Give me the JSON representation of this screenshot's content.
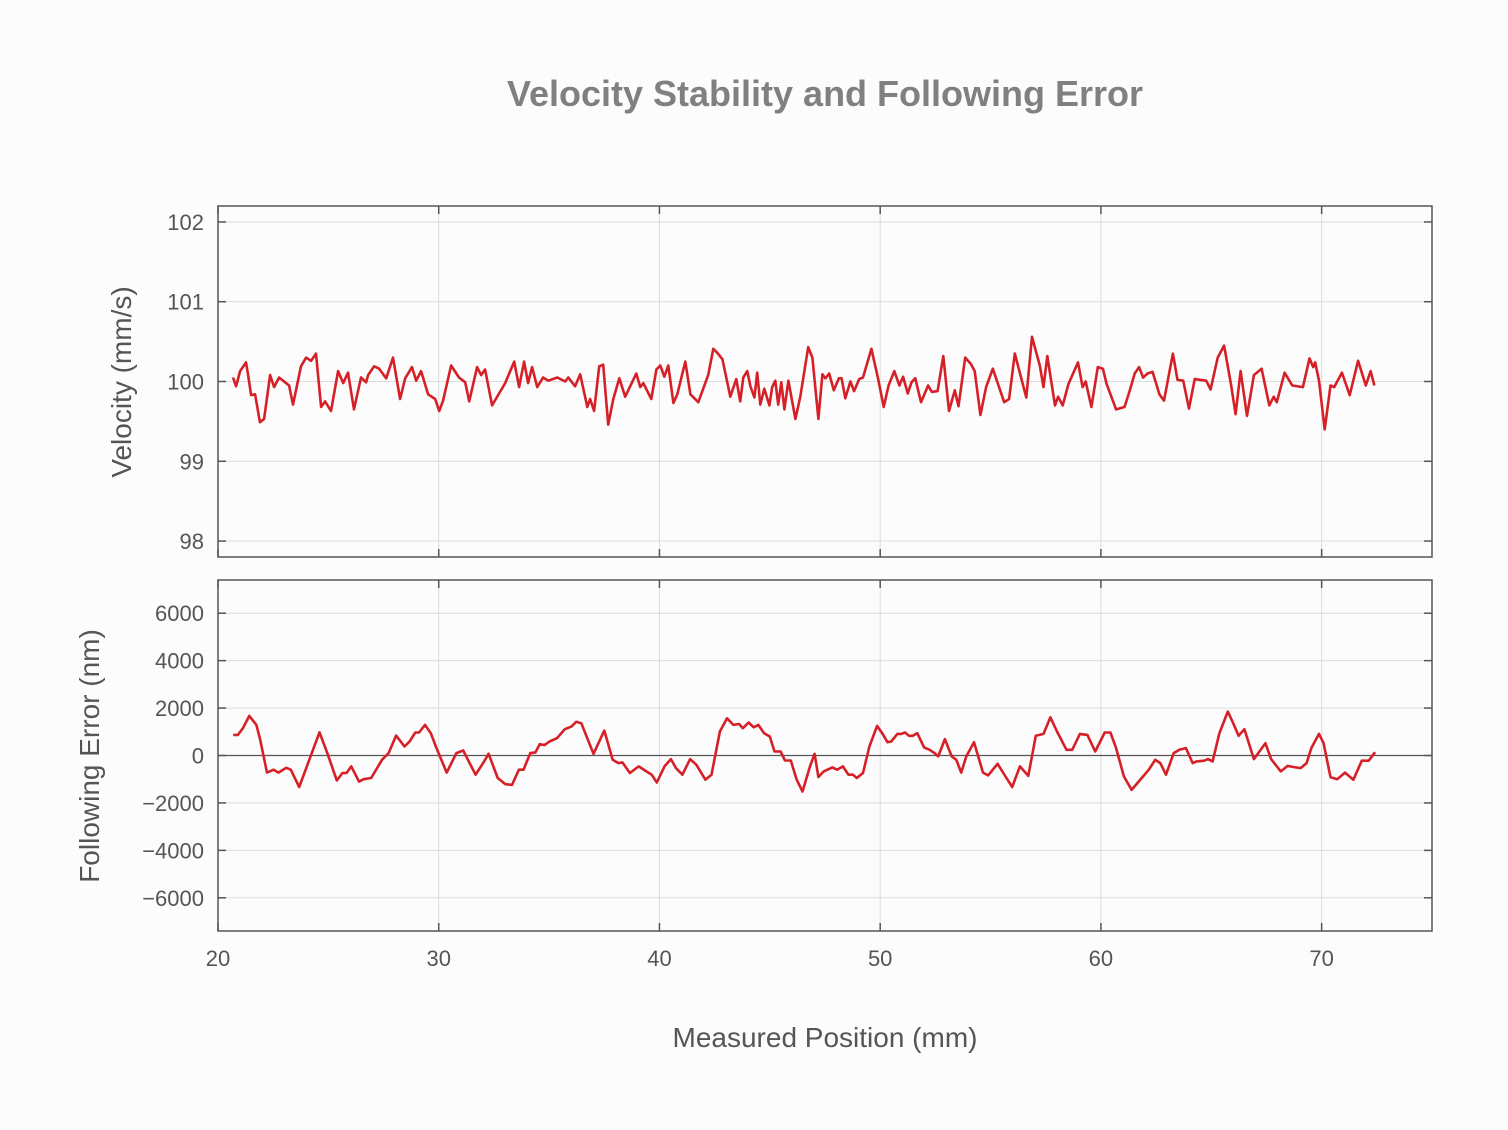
{
  "chart_data": {
    "title": "Velocity Stability and Following Error",
    "xlabel": "Measured Position (mm)",
    "xlim": [
      20,
      75
    ],
    "xticks": [
      20,
      30,
      40,
      50,
      60,
      70
    ],
    "grid": true,
    "line_color": "#d62028",
    "panels": [
      {
        "type": "line",
        "ylabel": "Velocity (mm/s)",
        "ylim": [
          97.8,
          102.2
        ],
        "yticks": [
          98,
          99,
          100,
          101,
          102
        ],
        "ytick_labels": [
          "98",
          "99",
          "100",
          "101",
          "102"
        ],
        "x": [
          20.68,
          20.82,
          21.0,
          21.27,
          21.36,
          21.5,
          21.68,
          21.9,
          22.09,
          22.36,
          22.54,
          22.77,
          23.04,
          23.22,
          23.4,
          23.76,
          23.99,
          24.22,
          24.44,
          24.67,
          24.85,
          25.12,
          25.44,
          25.67,
          25.89,
          26.16,
          26.48,
          26.71,
          26.8,
          27.07,
          27.3,
          27.62,
          27.93,
          28.25,
          28.48,
          28.79,
          28.98,
          29.2,
          29.52,
          29.84,
          30.02,
          30.2,
          30.56,
          30.92,
          31.2,
          31.38,
          31.74,
          31.92,
          32.1,
          32.42,
          32.69,
          33.01,
          33.42,
          33.64,
          33.87,
          34.05,
          34.23,
          34.46,
          34.73,
          34.96,
          35.37,
          35.73,
          35.87,
          36.18,
          36.41,
          36.73,
          36.86,
          37.04,
          37.27,
          37.45,
          37.68,
          37.91,
          38.18,
          38.45,
          38.95,
          39.13,
          39.27,
          39.63,
          39.86,
          40.04,
          40.22,
          40.4,
          40.63,
          40.81,
          41.17,
          41.4,
          41.76,
          42.21,
          42.44,
          42.62,
          42.85,
          43.21,
          43.48,
          43.66,
          43.8,
          43.98,
          44.12,
          44.3,
          44.43,
          44.57,
          44.75,
          44.98,
          45.11,
          45.25,
          45.38,
          45.52,
          45.66,
          45.84,
          46.16,
          46.38,
          46.74,
          46.93,
          47.2,
          47.38,
          47.52,
          47.69,
          47.9,
          48.13,
          48.25,
          48.42,
          48.65,
          48.82,
          49.05,
          49.22,
          49.6,
          49.91,
          50.16,
          50.38,
          50.64,
          50.87,
          51.04,
          51.25,
          51.42,
          51.59,
          51.85,
          52.17,
          52.34,
          52.6,
          52.86,
          53.12,
          53.38,
          53.55,
          53.85,
          54.11,
          54.28,
          54.54,
          54.8,
          55.1,
          55.62,
          55.84,
          56.1,
          56.62,
          56.88,
          57.23,
          57.4,
          57.57,
          57.92,
          58.06,
          58.27,
          58.53,
          58.96,
          59.17,
          59.31,
          59.57,
          59.86,
          60.09,
          60.26,
          60.69,
          61.07,
          61.3,
          61.53,
          61.73,
          61.91,
          62.11,
          62.34,
          62.65,
          62.86,
          63.26,
          63.47,
          63.73,
          63.99,
          64.25,
          64.77,
          64.97,
          65.29,
          65.58,
          65.89,
          66.1,
          66.33,
          66.62,
          66.93,
          67.28,
          67.63,
          67.83,
          67.97,
          68.32,
          68.67,
          69.15,
          69.45,
          69.62,
          69.71,
          69.88,
          70.14,
          70.4,
          70.57,
          70.92,
          71.27,
          71.65,
          72.0,
          72.22,
          72.39
        ],
        "y": [
          100.05,
          99.94,
          100.13,
          100.24,
          100.09,
          99.83,
          99.84,
          99.49,
          99.53,
          100.08,
          99.93,
          100.05,
          99.99,
          99.95,
          99.71,
          100.19,
          100.3,
          100.26,
          100.35,
          99.68,
          99.75,
          99.63,
          100.13,
          99.98,
          100.11,
          99.65,
          100.05,
          99.99,
          100.08,
          100.19,
          100.16,
          100.04,
          100.3,
          99.78,
          100.04,
          100.18,
          100.01,
          100.13,
          99.84,
          99.78,
          99.63,
          99.76,
          100.2,
          100.05,
          99.99,
          99.75,
          100.18,
          100.08,
          100.15,
          99.7,
          99.83,
          99.98,
          100.25,
          99.93,
          100.25,
          99.98,
          100.18,
          99.93,
          100.05,
          100.01,
          100.05,
          100.0,
          100.05,
          99.94,
          100.09,
          99.68,
          99.78,
          99.63,
          100.19,
          100.21,
          99.46,
          99.78,
          100.04,
          99.81,
          100.1,
          99.93,
          99.98,
          99.78,
          100.15,
          100.2,
          100.06,
          100.2,
          99.73,
          99.84,
          100.25,
          99.84,
          99.74,
          100.08,
          100.41,
          100.36,
          100.28,
          99.81,
          100.03,
          99.75,
          100.05,
          100.13,
          99.94,
          99.8,
          100.11,
          99.71,
          99.91,
          99.7,
          99.93,
          100.01,
          99.71,
          99.99,
          99.65,
          100.01,
          99.53,
          99.81,
          100.43,
          100.3,
          99.53,
          100.09,
          100.04,
          100.1,
          99.89,
          100.04,
          100.04,
          99.79,
          100.0,
          99.88,
          100.03,
          100.05,
          100.41,
          100.03,
          99.68,
          99.95,
          100.13,
          99.95,
          100.06,
          99.85,
          99.99,
          100.04,
          99.74,
          99.95,
          99.87,
          99.88,
          100.32,
          99.63,
          99.89,
          99.69,
          100.3,
          100.22,
          100.13,
          99.58,
          99.93,
          100.16,
          99.74,
          99.78,
          100.35,
          99.8,
          100.56,
          100.2,
          99.93,
          100.32,
          99.7,
          99.81,
          99.7,
          99.97,
          100.24,
          99.93,
          100.0,
          99.68,
          100.18,
          100.16,
          99.97,
          99.65,
          99.68,
          99.88,
          100.1,
          100.18,
          100.05,
          100.1,
          100.12,
          99.84,
          99.76,
          100.35,
          100.02,
          100.01,
          99.66,
          100.03,
          100.01,
          99.9,
          100.3,
          100.45,
          99.97,
          99.59,
          100.13,
          99.57,
          100.08,
          100.16,
          99.7,
          99.81,
          99.74,
          100.11,
          99.95,
          99.93,
          100.29,
          100.18,
          100.24,
          100.01,
          99.4,
          99.95,
          99.93,
          100.11,
          99.83,
          100.26,
          99.95,
          100.13,
          99.95
        ]
      },
      {
        "type": "line",
        "ylabel": "Following Error (nm)",
        "ylim": [
          -7400,
          7400
        ],
        "yticks": [
          -6000,
          -4000,
          -2000,
          0,
          2000,
          4000,
          6000
        ],
        "ytick_labels": [
          "−6000",
          "−4000",
          "−2000",
          "0",
          "2000",
          "4000",
          "6000"
        ],
        "zero_line": true,
        "x": [
          20.69,
          20.9,
          21.13,
          21.42,
          21.74,
          21.91,
          22.22,
          22.52,
          22.74,
          23.09,
          23.3,
          23.68,
          24.25,
          24.6,
          24.95,
          25.38,
          25.64,
          25.82,
          26.04,
          26.39,
          26.6,
          26.94,
          27.43,
          27.73,
          28.07,
          28.45,
          28.68,
          28.94,
          29.11,
          29.38,
          29.64,
          29.9,
          30.36,
          30.8,
          31.11,
          31.67,
          32.01,
          32.26,
          32.67,
          33.02,
          33.32,
          33.63,
          33.84,
          34.15,
          34.38,
          34.58,
          34.79,
          35.02,
          35.36,
          35.71,
          36.01,
          36.23,
          36.46,
          36.7,
          37.01,
          37.5,
          37.88,
          38.14,
          38.32,
          38.66,
          39.06,
          39.41,
          39.65,
          39.88,
          40.23,
          40.52,
          40.75,
          41.04,
          41.39,
          41.67,
          42.08,
          42.36,
          42.74,
          43.06,
          43.35,
          43.61,
          43.78,
          44.04,
          44.27,
          44.48,
          44.74,
          45.0,
          45.21,
          45.49,
          45.69,
          45.95,
          46.22,
          46.48,
          46.82,
          47.03,
          47.2,
          47.44,
          47.83,
          48.05,
          48.31,
          48.56,
          48.77,
          48.94,
          49.22,
          49.51,
          49.86,
          50.09,
          50.33,
          50.5,
          50.78,
          50.95,
          51.13,
          51.3,
          51.47,
          51.68,
          51.99,
          52.24,
          52.46,
          52.63,
          52.93,
          53.24,
          53.45,
          53.67,
          53.9,
          54.25,
          54.66,
          54.89,
          55.32,
          55.58,
          55.98,
          56.33,
          56.71,
          57.05,
          57.4,
          57.71,
          58.01,
          58.44,
          58.7,
          59.05,
          59.39,
          59.74,
          60.17,
          60.43,
          60.69,
          61.04,
          61.39,
          61.91,
          62.17,
          62.46,
          62.69,
          62.95,
          63.3,
          63.55,
          63.85,
          64.16,
          64.33,
          64.68,
          64.85,
          65.06,
          65.37,
          65.75,
          65.98,
          66.24,
          66.5,
          66.93,
          67.45,
          67.71,
          68.15,
          68.46,
          68.75,
          69.05,
          69.32,
          69.53,
          69.88,
          70.09,
          70.4,
          70.71,
          71.06,
          71.44,
          71.82,
          72.13,
          72.42
        ],
        "y": [
          870,
          870,
          1150,
          1670,
          1290,
          660,
          -720,
          -600,
          -720,
          -520,
          -600,
          -1330,
          100,
          980,
          100,
          -1050,
          -740,
          -740,
          -460,
          -1100,
          -1000,
          -950,
          -180,
          100,
          840,
          380,
          590,
          970,
          970,
          1290,
          940,
          310,
          -720,
          100,
          210,
          -810,
          -320,
          70,
          -950,
          -1210,
          -1240,
          -600,
          -600,
          100,
          130,
          480,
          440,
          590,
          730,
          1110,
          1220,
          1420,
          1360,
          800,
          70,
          1050,
          -180,
          -320,
          -290,
          -740,
          -460,
          -670,
          -810,
          -1140,
          -460,
          -150,
          -530,
          -810,
          -150,
          -390,
          -1020,
          -810,
          1010,
          1570,
          1290,
          1330,
          1150,
          1390,
          1190,
          1290,
          940,
          800,
          170,
          170,
          -210,
          -210,
          -1020,
          -1520,
          -460,
          70,
          -910,
          -670,
          -500,
          -600,
          -460,
          -810,
          -810,
          -950,
          -740,
          380,
          1250,
          940,
          560,
          590,
          910,
          910,
          970,
          830,
          830,
          940,
          340,
          240,
          100,
          -40,
          690,
          -40,
          -180,
          -720,
          -40,
          560,
          -720,
          -840,
          -350,
          -740,
          -1330,
          -460,
          -860,
          830,
          910,
          1610,
          1010,
          240,
          240,
          910,
          870,
          170,
          970,
          970,
          310,
          -880,
          -1450,
          -880,
          -600,
          -180,
          -320,
          -810,
          100,
          240,
          310,
          -320,
          -250,
          -220,
          -150,
          -250,
          940,
          1850,
          1390,
          830,
          1110,
          -150,
          520,
          -150,
          -670,
          -440,
          -490,
          -530,
          -320,
          310,
          910,
          520,
          -910,
          -1000,
          -720,
          -1020,
          -220,
          -220,
          140
        ]
      }
    ]
  }
}
